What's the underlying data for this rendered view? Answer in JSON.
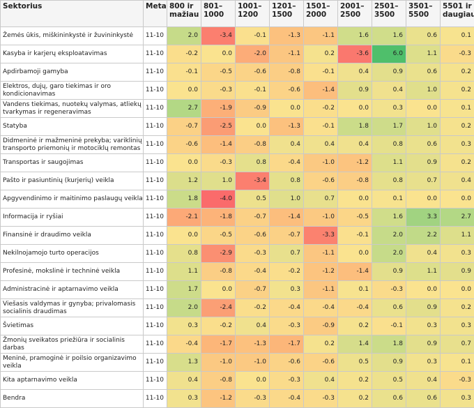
{
  "table": {
    "headers": [
      "Sektorius",
      "Metai",
      "800 ir mažiau",
      "801–1000",
      "1001–1200",
      "1201–1500",
      "1501–2000",
      "2001–2500",
      "2501–3500",
      "3501–5500",
      "5501 ir daugiau"
    ],
    "rows": [
      {
        "sector": "Žemės ūkis, miškininkystė ir žuvininkystė",
        "year": "11-10",
        "values": [
          "2.0",
          "-3.4",
          "-0.1",
          "-1.3",
          "-1.1",
          "1.6",
          "1.6",
          "0.6",
          "0.1"
        ]
      },
      {
        "sector": "Kasyba ir karjerų eksploatavimas",
        "year": "11-10",
        "values": [
          "-0.2",
          "0.0",
          "-2.0",
          "-1.1",
          "0.2",
          "-3.6",
          "6.0",
          "1.1",
          "-0.3"
        ]
      },
      {
        "sector": "Apdirbamoji gamyba",
        "year": "11-10",
        "values": [
          "-0.1",
          "-0.5",
          "-0.6",
          "-0.8",
          "-0.1",
          "0.4",
          "0.9",
          "0.6",
          "0.2"
        ]
      },
      {
        "sector": "Elektros, dujų, garo tiekimas ir oro kondicionavimas",
        "year": "11-10",
        "values": [
          "0.0",
          "-0.3",
          "-0.1",
          "-0.6",
          "-1.4",
          "0.9",
          "0.4",
          "1.0",
          "0.2"
        ]
      },
      {
        "sector": "Vandens tiekimas, nuotekų valymas, atliekų tvarkymas ir regeneravimas",
        "year": "11-10",
        "values": [
          "2.7",
          "-1.9",
          "-0.9",
          "0.0",
          "-0.2",
          "0.0",
          "0.3",
          "0.0",
          "0.1"
        ]
      },
      {
        "sector": "Statyba",
        "year": "11-10",
        "values": [
          "-0.7",
          "-2.5",
          "0.0",
          "-1.3",
          "-0.1",
          "1.8",
          "1.7",
          "1.0",
          "0.2"
        ]
      },
      {
        "sector": "Didmeninė ir mažmeninė prekyba; variklinių transporto priemonių ir motociklų remontas",
        "year": "11-10",
        "values": [
          "-0.6",
          "-1.4",
          "-0.8",
          "0.4",
          "0.4",
          "0.4",
          "0.8",
          "0.6",
          "0.3"
        ]
      },
      {
        "sector": "Transportas ir saugojimas",
        "year": "11-10",
        "values": [
          "0.0",
          "-0.3",
          "0.8",
          "-0.4",
          "-1.0",
          "-1.2",
          "1.1",
          "0.9",
          "0.2"
        ]
      },
      {
        "sector": "Pašto ir pasiuntinių (kurjerių) veikla",
        "year": "11-10",
        "values": [
          "1.2",
          "1.0",
          "-3.4",
          "0.8",
          "-0.6",
          "-0.8",
          "0.8",
          "0.7",
          "0.4"
        ]
      },
      {
        "sector": "Apgyvendinimo ir maitinimo paslaugų veikla",
        "year": "11-10",
        "values": [
          "1.8",
          "-4.0",
          "0.5",
          "1.0",
          "0.7",
          "0.0",
          "0.1",
          "0.0",
          "0.0"
        ]
      },
      {
        "sector": "Informacija ir ryšiai",
        "year": "11-10",
        "values": [
          "-2.1",
          "-1.8",
          "-0.7",
          "-1.4",
          "-1.0",
          "-0.5",
          "1.6",
          "3.3",
          "2.7"
        ]
      },
      {
        "sector": "Finansinė ir draudimo veikla",
        "year": "11-10",
        "values": [
          "0.0",
          "-0.5",
          "-0.6",
          "-0.7",
          "-3.3",
          "-0.1",
          "2.0",
          "2.2",
          "1.1"
        ]
      },
      {
        "sector": "Nekilnojamojo turto operacijos",
        "year": "11-10",
        "values": [
          "0.8",
          "-2.9",
          "-0.3",
          "0.7",
          "-1.1",
          "0.0",
          "2.0",
          "0.4",
          "0.3"
        ]
      },
      {
        "sector": "Profesinė, mokslinė ir techninė veikla",
        "year": "11-10",
        "values": [
          "1.1",
          "-0.8",
          "-0.4",
          "-0.2",
          "-1.2",
          "-1.4",
          "0.9",
          "1.1",
          "0.9"
        ]
      },
      {
        "sector": "Administracinė ir aptarnavimo veikla",
        "year": "11-10",
        "values": [
          "1.7",
          "0.0",
          "-0.7",
          "0.3",
          "-1.1",
          "0.1",
          "-0.3",
          "0.0",
          "0.0"
        ]
      },
      {
        "sector": "Viešasis valdymas ir gynyba; privalomasis socialinis draudimas",
        "year": "11-10",
        "values": [
          "2.0",
          "-2.4",
          "-0.2",
          "-0.4",
          "-0.4",
          "-0.4",
          "0.6",
          "0.9",
          "0.2"
        ]
      },
      {
        "sector": "Švietimas",
        "year": "11-10",
        "values": [
          "0.3",
          "-0.2",
          "0.4",
          "-0.3",
          "-0.9",
          "0.2",
          "-0.1",
          "0.3",
          "0.3"
        ]
      },
      {
        "sector": "Žmonių sveikatos priežiūra ir socialinis darbas",
        "year": "11-10",
        "values": [
          "-0.4",
          "-1.7",
          "-1.3",
          "-1.7",
          "0.2",
          "1.4",
          "1.8",
          "0.9",
          "0.7"
        ]
      },
      {
        "sector": "Meninė, pramoginė ir poilsio organizavimo veikla",
        "year": "11-10",
        "values": [
          "1.3",
          "-1.0",
          "-1.0",
          "-0.6",
          "-0.6",
          "0.5",
          "0.9",
          "0.3",
          "0.1"
        ]
      },
      {
        "sector": "Kita aptarnavimo veikla",
        "year": "11-10",
        "values": [
          "0.4",
          "-0.8",
          "0.0",
          "-0.3",
          "0.4",
          "0.2",
          "0.5",
          "0.4",
          "-0.3"
        ]
      },
      {
        "sector": "Bendra",
        "year": "11-10",
        "values": [
          "0.3",
          "-1.2",
          "-0.3",
          "-0.4",
          "-0.3",
          "0.2",
          "0.6",
          "0.6",
          "0.3"
        ]
      }
    ]
  },
  "colors": {
    "most_negative": "#fa6b6b",
    "negative": "#fcb97a",
    "neutral": "#fae38f",
    "positive": "#b9d987",
    "most_positive": "#4fbf6b"
  }
}
